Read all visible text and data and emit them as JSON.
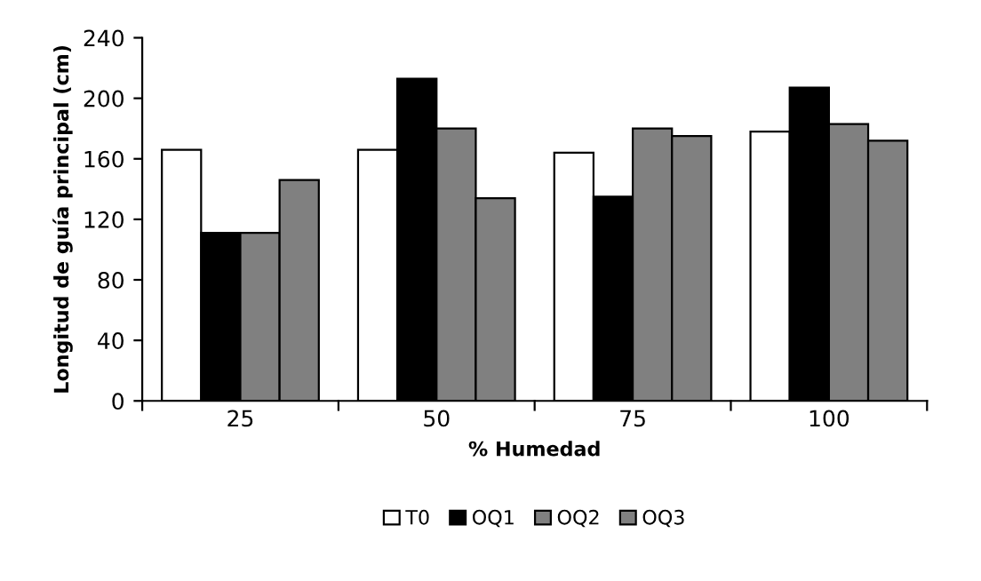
{
  "chart_data": {
    "type": "bar",
    "xlabel": "% Humedad",
    "ylabel": "Longitud de guía principal (cm)",
    "categories": [
      "25",
      "50",
      "75",
      "100"
    ],
    "series": [
      {
        "name": "T0",
        "color": "#ffffff",
        "values": [
          166,
          166,
          164,
          178
        ]
      },
      {
        "name": "OQ1",
        "color": "#000000",
        "values": [
          111,
          213,
          135,
          207
        ]
      },
      {
        "name": "OQ2",
        "color": "#808080",
        "values": [
          111,
          180,
          180,
          183
        ]
      },
      {
        "name": "OQ3",
        "color": "#808080",
        "values": [
          146,
          134,
          175,
          172
        ]
      }
    ],
    "ylim": [
      0,
      240
    ],
    "yticks": [
      0,
      40,
      80,
      120,
      160,
      200,
      240
    ],
    "grid": false,
    "legend": "bottom"
  }
}
